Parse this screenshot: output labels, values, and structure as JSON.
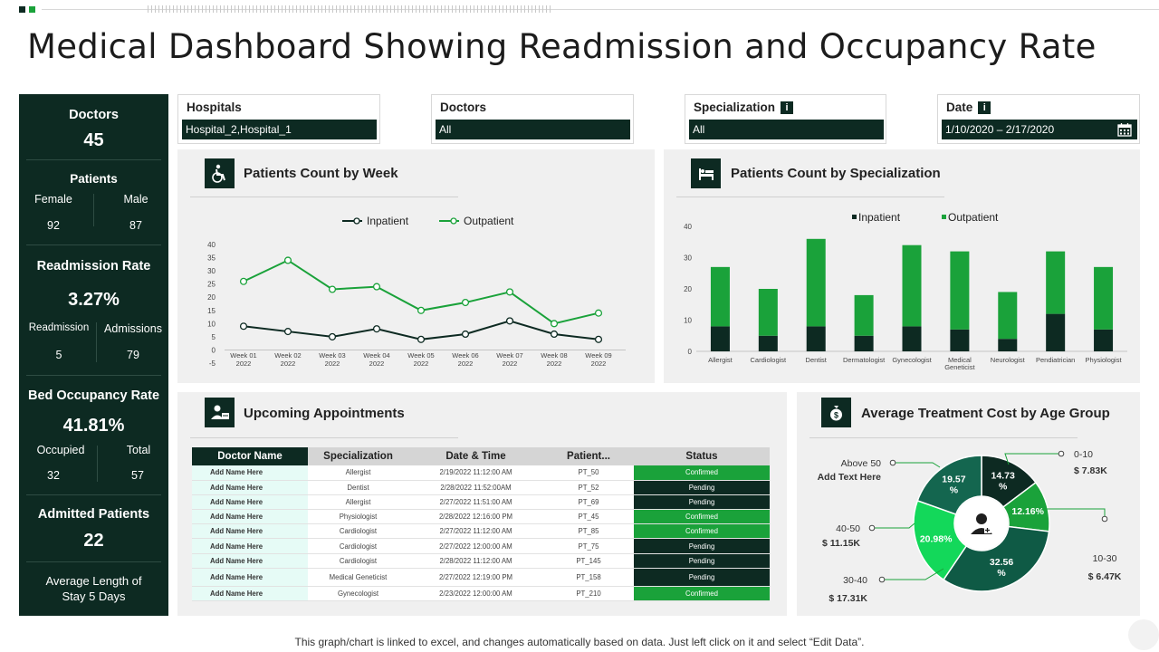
{
  "title": "Medical Dashboard Showing Readmission and Occupancy Rate",
  "colors": {
    "dark": "#0d2a22",
    "green": "#1aa23a",
    "panel": "#f0f0f0"
  },
  "sidebar": {
    "doctors_label": "Doctors",
    "doctors_value": "45",
    "patients_label": "Patients",
    "female_label": "Female",
    "female_value": "92",
    "male_label": "Male",
    "male_value": "87",
    "readmission_rate_label": "Readmission Rate",
    "readmission_rate_value": "3.27%",
    "readmission_label": "Readmission",
    "readmission_value": "5",
    "admissions_label": "Admissions",
    "admissions_value": "79",
    "bed_occupancy_label": "Bed Occupancy Rate",
    "bed_occupancy_value": "41.81%",
    "occupied_label": "Occupied",
    "occupied_value": "32",
    "total_label": "Total",
    "total_value": "57",
    "admitted_label": "Admitted Patients",
    "admitted_value": "22",
    "avg_stay_line1": "Average Length of",
    "avg_stay_line2": "Stay 5 Days"
  },
  "filters": {
    "hospitals": {
      "label": "Hospitals",
      "value": "Hospital_2,Hospital_1"
    },
    "doctors": {
      "label": "Doctors",
      "value": "All"
    },
    "specialization": {
      "label": "Specialization",
      "info": "i",
      "value": "All"
    },
    "date": {
      "label": "Date",
      "info": "i",
      "value": "1/10/2020 – 2/17/2020",
      "icon": "calendar-icon"
    }
  },
  "panels": {
    "week_title": "Patients Count by Week",
    "spec_title": "Patients Count by  Specialization",
    "appt_title": "Upcoming Appointments",
    "cost_title": "Average Treatment Cost by Age Group"
  },
  "chart_data": [
    {
      "type": "line",
      "title": "Patients Count by Week",
      "categories": [
        "Week 01|2022",
        "Week 02|2022",
        "Week 03|2022",
        "Week 04|2022",
        "Week 05|2022",
        "Week 06|2022",
        "Week 07|2022",
        "Week 08|2022",
        "Week 09|2022"
      ],
      "series": [
        {
          "name": "Inpatient",
          "color": "#0d2a22",
          "values": [
            9,
            7,
            5,
            8,
            4,
            6,
            11,
            6,
            4
          ]
        },
        {
          "name": "Outpatient",
          "color": "#1aa23a",
          "values": [
            26,
            34,
            23,
            24,
            15,
            18,
            22,
            10,
            14
          ]
        }
      ],
      "yticks": [
        40,
        35,
        30,
        25,
        20,
        15,
        10,
        5,
        0,
        -5
      ],
      "ylim": [
        -5,
        40
      ],
      "legend": "top-center"
    },
    {
      "type": "bar",
      "stacked": true,
      "title": "Patients Count by  Specialization",
      "categories": [
        "Allergist",
        "Cardiologist",
        "Dentist",
        "Dermatologist",
        "Gynecologist",
        "Medical|Geneticist",
        "Neurologist",
        "Pendiatrician",
        "Physiologist"
      ],
      "series": [
        {
          "name": "Inpatient",
          "color": "#0d2a22",
          "values": [
            8,
            5,
            8,
            5,
            8,
            7,
            4,
            12,
            7
          ]
        },
        {
          "name": "Outpatient",
          "color": "#1aa23a",
          "values": [
            19,
            15,
            28,
            13,
            26,
            25,
            15,
            20,
            20
          ]
        }
      ],
      "yticks": [
        40,
        30,
        20,
        10,
        0
      ],
      "ylim": [
        0,
        40
      ],
      "legend": "top-center"
    },
    {
      "type": "pie",
      "title": "Average Treatment Cost by Age Group",
      "slices": [
        {
          "label": "0-10",
          "value": 14.73,
          "text": "14.73 %",
          "cost": "$ 7.83K",
          "color": "#0d2a22"
        },
        {
          "label": "Above 50",
          "value": 12.16,
          "text": "12.16%",
          "cost": "Add Text Here",
          "color": "#1aa23a"
        },
        {
          "label": "10-30",
          "value": 32.56,
          "text": "32.56 %",
          "cost": "$ 6.47K",
          "color": "#0f5a45"
        },
        {
          "label": "30-40",
          "value": 20.98,
          "text": "20.98%",
          "cost": "$ 17.31K",
          "color": "#13d85a"
        },
        {
          "label": "40-50",
          "value": 19.57,
          "text": "19.57 %",
          "cost": "$ 11.15K",
          "color": "#14664f"
        }
      ]
    }
  ],
  "appointments": {
    "columns": [
      "Doctor Name",
      "Specialization",
      "Date & Time",
      "Patient...",
      "Status"
    ],
    "rows": [
      [
        "Add Name Here",
        "Allergist",
        "2/19/2022  11:12:00  AM",
        "PT_50",
        "Confirmed"
      ],
      [
        "Add Name Here",
        "Dentist",
        "2/28/2022  11:52:00AM",
        "PT_52",
        "Pending"
      ],
      [
        "Add Name Here",
        "Allergist",
        "2/27/2022  11:51:00  AM",
        "PT_69",
        "Pending"
      ],
      [
        "Add Name Here",
        "Physiologist",
        "2/28/2022  12:16:00  PM",
        "PT_45",
        "Confirmed"
      ],
      [
        "Add Name Here",
        "Cardiologist",
        "2/27/2022  11:12:00  AM",
        "PT_85",
        "Confirmed"
      ],
      [
        "Add Name Here",
        "Cardiologist",
        "2/27/2022  12:00:00  AM",
        "PT_75",
        "Pending"
      ],
      [
        "Add Name Here",
        "Cardiologist",
        "2/28/2022  11:12:00  AM",
        "PT_145",
        "Pending"
      ],
      [
        "Add Name Here",
        "Medical Geneticist",
        "2/27/2022  12:19:00  PM",
        "PT_158",
        "Pending"
      ],
      [
        "Add Name Here",
        "Gynecologist",
        "2/23/2022  12:00:00  AM",
        "PT_210",
        "Confirmed"
      ]
    ]
  },
  "footer": "This graph/chart is linked to excel,  and changes automatically based on data. Just left click on it and select “Edit Data”."
}
